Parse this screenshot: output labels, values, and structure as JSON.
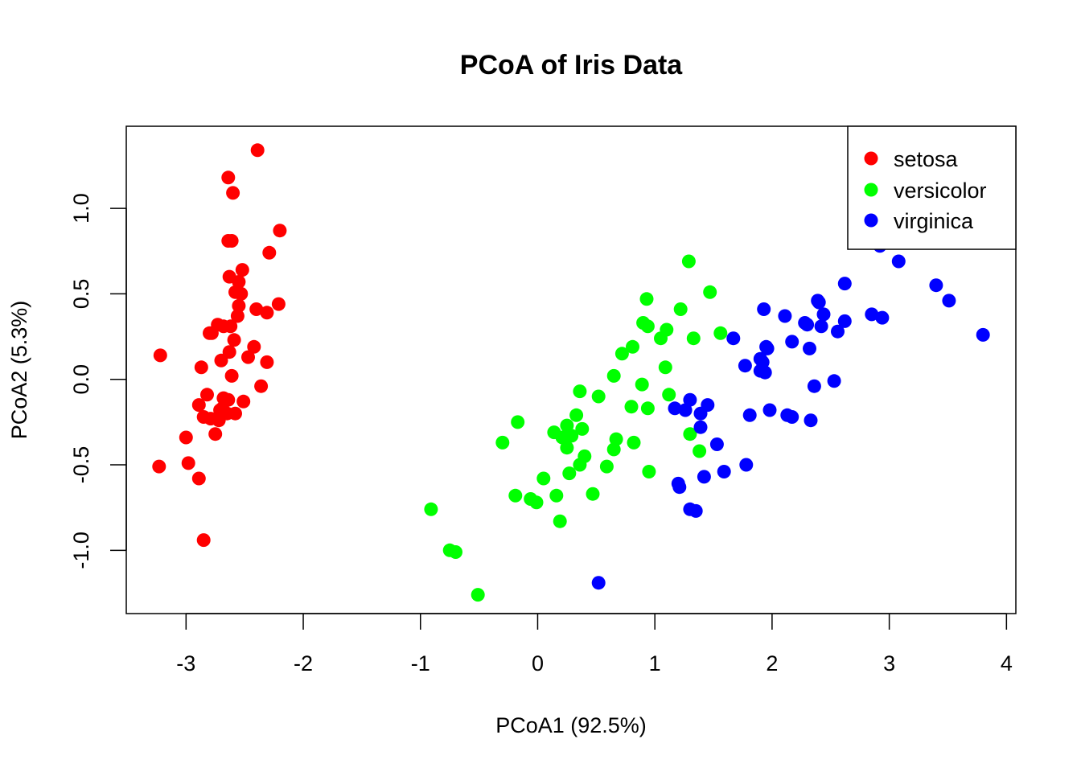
{
  "chart_data": {
    "type": "scatter",
    "title": "PCoA of Iris Data",
    "xlabel": "PCoA1 (92.5%)",
    "ylabel": "PCoA2 (5.3%)",
    "xlim": [
      -3.51,
      4.08
    ],
    "ylim": [
      -1.37,
      1.48
    ],
    "xticks": [
      -3,
      -2,
      -1,
      0,
      1,
      2,
      3,
      4
    ],
    "xtick_labels": [
      "-3",
      "-2",
      "-1",
      "0",
      "1",
      "2",
      "3",
      "4"
    ],
    "yticks": [
      -1.0,
      -0.5,
      0.0,
      0.5,
      1.0
    ],
    "ytick_labels": [
      "-1.0",
      "-0.5",
      "0.0",
      "0.5",
      "1.0"
    ],
    "grid": false,
    "legend_position": "top-right",
    "series": [
      {
        "name": "setosa",
        "color": "#ff0000",
        "points": [
          [
            -2.39,
            1.34
          ],
          [
            -2.64,
            1.18
          ],
          [
            -2.6,
            1.09
          ],
          [
            -2.2,
            0.87
          ],
          [
            -2.64,
            0.81
          ],
          [
            -2.61,
            0.81
          ],
          [
            -2.29,
            0.74
          ],
          [
            -2.52,
            0.64
          ],
          [
            -2.63,
            0.6
          ],
          [
            -2.55,
            0.57
          ],
          [
            -2.58,
            0.51
          ],
          [
            -2.53,
            0.5
          ],
          [
            -2.55,
            0.43
          ],
          [
            -2.4,
            0.41
          ],
          [
            -2.31,
            0.39
          ],
          [
            -2.21,
            0.44
          ],
          [
            -2.56,
            0.37
          ],
          [
            -2.73,
            0.32
          ],
          [
            -2.68,
            0.31
          ],
          [
            -2.62,
            0.31
          ],
          [
            -2.8,
            0.27
          ],
          [
            -2.78,
            0.27
          ],
          [
            -2.59,
            0.23
          ],
          [
            -2.42,
            0.19
          ],
          [
            -2.63,
            0.16
          ],
          [
            -3.22,
            0.14
          ],
          [
            -2.47,
            0.13
          ],
          [
            -2.7,
            0.11
          ],
          [
            -2.31,
            0.1
          ],
          [
            -2.87,
            0.07
          ],
          [
            -2.61,
            0.02
          ],
          [
            -2.36,
            -0.04
          ],
          [
            -2.82,
            -0.09
          ],
          [
            -2.68,
            -0.11
          ],
          [
            -2.64,
            -0.12
          ],
          [
            -2.51,
            -0.13
          ],
          [
            -2.89,
            -0.15
          ],
          [
            -2.71,
            -0.18
          ],
          [
            -2.65,
            -0.2
          ],
          [
            -2.58,
            -0.2
          ],
          [
            -2.85,
            -0.22
          ],
          [
            -2.79,
            -0.23
          ],
          [
            -2.72,
            -0.24
          ],
          [
            -2.75,
            -0.32
          ],
          [
            -3.0,
            -0.34
          ],
          [
            -2.98,
            -0.49
          ],
          [
            -3.23,
            -0.51
          ],
          [
            -2.89,
            -0.58
          ],
          [
            -2.85,
            -0.94
          ],
          [
            -2.69,
            -0.17
          ]
        ]
      },
      {
        "name": "versicolor",
        "color": "#00ff00",
        "points": [
          [
            1.29,
            0.69
          ],
          [
            1.47,
            0.51
          ],
          [
            0.93,
            0.47
          ],
          [
            1.22,
            0.41
          ],
          [
            0.9,
            0.33
          ],
          [
            0.94,
            0.31
          ],
          [
            1.1,
            0.29
          ],
          [
            1.56,
            0.27
          ],
          [
            1.05,
            0.24
          ],
          [
            1.33,
            0.24
          ],
          [
            0.81,
            0.19
          ],
          [
            0.72,
            0.15
          ],
          [
            1.09,
            0.07
          ],
          [
            0.65,
            0.02
          ],
          [
            0.89,
            -0.03
          ],
          [
            0.36,
            -0.07
          ],
          [
            1.12,
            -0.09
          ],
          [
            0.52,
            -0.1
          ],
          [
            0.8,
            -0.16
          ],
          [
            0.94,
            -0.17
          ],
          [
            0.33,
            -0.21
          ],
          [
            -0.17,
            -0.25
          ],
          [
            0.25,
            -0.27
          ],
          [
            0.38,
            -0.29
          ],
          [
            0.14,
            -0.31
          ],
          [
            0.29,
            -0.33
          ],
          [
            0.21,
            -0.34
          ],
          [
            0.25,
            -0.4
          ],
          [
            1.3,
            -0.32
          ],
          [
            0.67,
            -0.35
          ],
          [
            -0.3,
            -0.37
          ],
          [
            0.82,
            -0.37
          ],
          [
            0.65,
            -0.41
          ],
          [
            1.38,
            -0.42
          ],
          [
            0.36,
            -0.5
          ],
          [
            0.59,
            -0.51
          ],
          [
            0.27,
            -0.55
          ],
          [
            0.95,
            -0.54
          ],
          [
            0.05,
            -0.58
          ],
          [
            0.47,
            -0.67
          ],
          [
            -0.19,
            -0.68
          ],
          [
            0.16,
            -0.68
          ],
          [
            -0.06,
            -0.7
          ],
          [
            -0.01,
            -0.72
          ],
          [
            -0.91,
            -0.76
          ],
          [
            0.19,
            -0.83
          ],
          [
            -0.75,
            -1.0
          ],
          [
            -0.7,
            -1.01
          ],
          [
            -0.51,
            -1.26
          ],
          [
            0.4,
            -0.45
          ]
        ]
      },
      {
        "name": "virginica",
        "color": "#0000ff",
        "points": [
          [
            2.92,
            0.78
          ],
          [
            3.08,
            0.69
          ],
          [
            2.62,
            0.56
          ],
          [
            3.4,
            0.55
          ],
          [
            2.39,
            0.46
          ],
          [
            3.51,
            0.46
          ],
          [
            1.93,
            0.41
          ],
          [
            2.44,
            0.38
          ],
          [
            2.85,
            0.38
          ],
          [
            2.11,
            0.37
          ],
          [
            2.94,
            0.36
          ],
          [
            2.62,
            0.34
          ],
          [
            2.28,
            0.33
          ],
          [
            2.42,
            0.31
          ],
          [
            2.56,
            0.28
          ],
          [
            3.8,
            0.26
          ],
          [
            1.67,
            0.24
          ],
          [
            2.17,
            0.22
          ],
          [
            1.95,
            0.19
          ],
          [
            2.32,
            0.18
          ],
          [
            1.9,
            0.12
          ],
          [
            1.77,
            0.08
          ],
          [
            1.9,
            0.05
          ],
          [
            1.94,
            0.04
          ],
          [
            2.53,
            -0.01
          ],
          [
            2.36,
            -0.04
          ],
          [
            1.3,
            -0.12
          ],
          [
            1.45,
            -0.15
          ],
          [
            1.17,
            -0.17
          ],
          [
            1.26,
            -0.18
          ],
          [
            1.98,
            -0.18
          ],
          [
            1.39,
            -0.2
          ],
          [
            1.81,
            -0.21
          ],
          [
            2.13,
            -0.21
          ],
          [
            2.17,
            -0.22
          ],
          [
            2.33,
            -0.24
          ],
          [
            1.39,
            -0.28
          ],
          [
            1.53,
            -0.38
          ],
          [
            1.78,
            -0.5
          ],
          [
            1.59,
            -0.54
          ],
          [
            1.42,
            -0.57
          ],
          [
            1.2,
            -0.61
          ],
          [
            1.3,
            -0.76
          ],
          [
            1.35,
            -0.77
          ],
          [
            0.52,
            -1.19
          ],
          [
            1.21,
            -0.63
          ],
          [
            2.3,
            0.32
          ],
          [
            1.96,
            0.18
          ],
          [
            2.4,
            0.45
          ],
          [
            1.92,
            0.1
          ]
        ]
      }
    ]
  }
}
